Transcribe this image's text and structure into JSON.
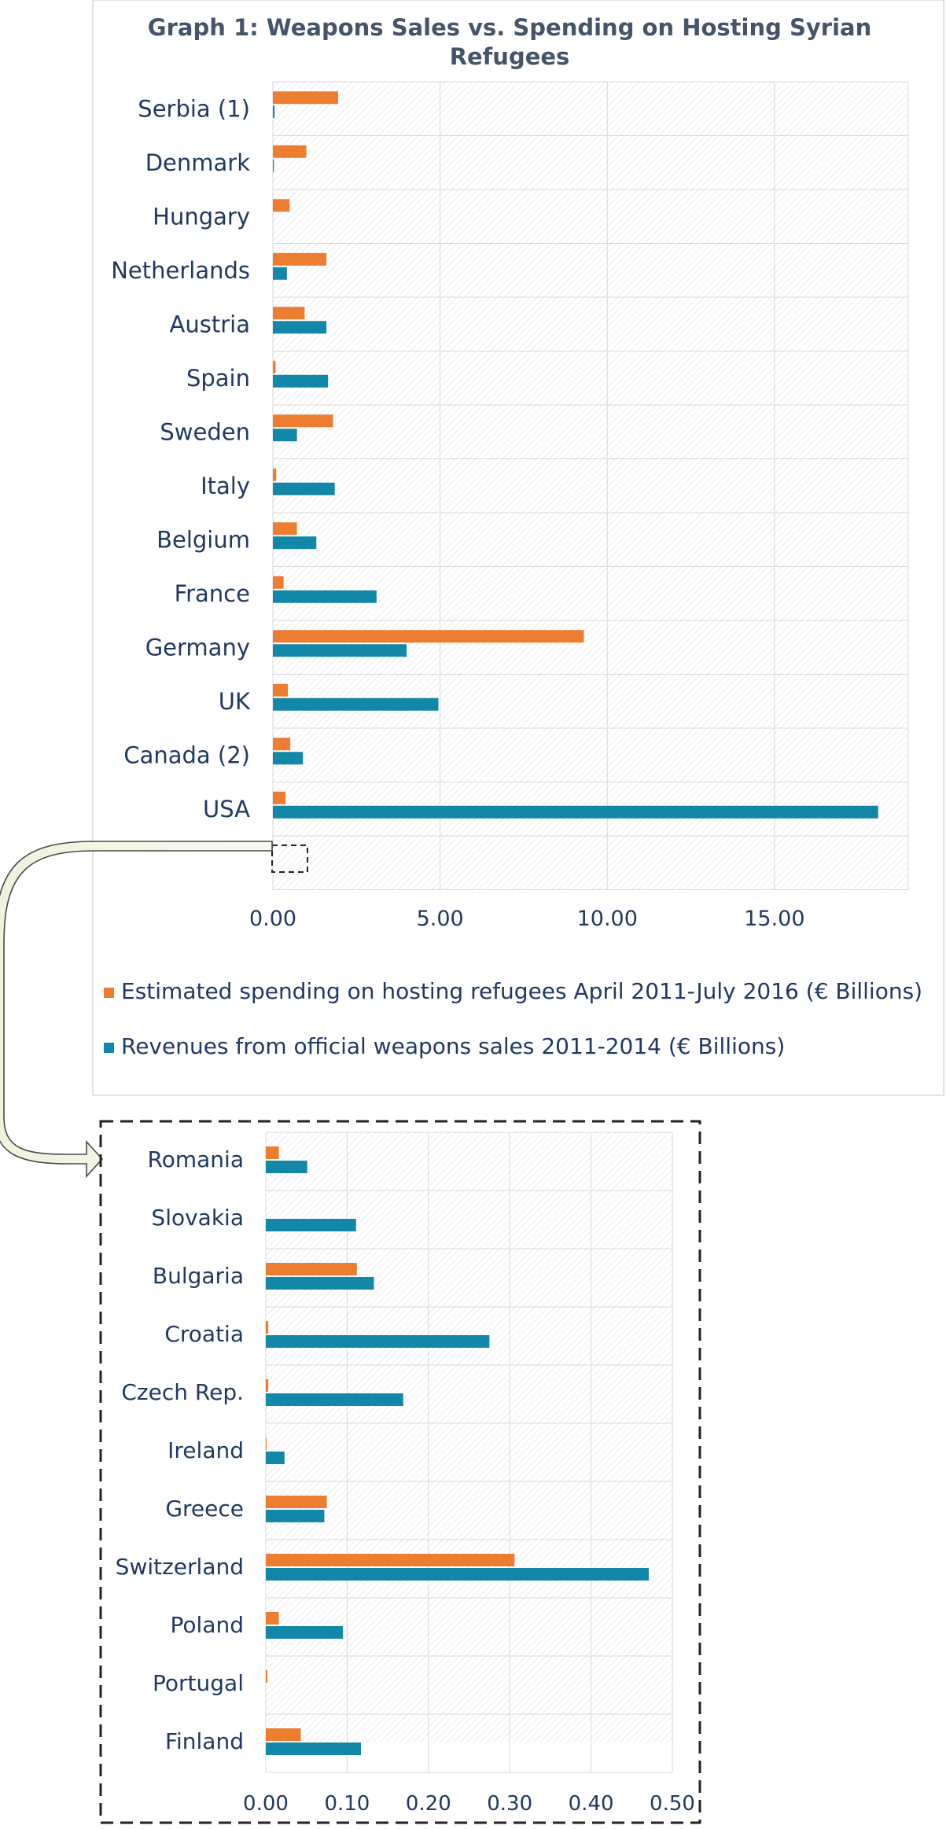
{
  "chart_data": [
    {
      "type": "bar",
      "orientation": "horizontal",
      "title": "Graph 1: Weapons Sales vs. Spending on Hosting Syrian Refugees",
      "categories": [
        "Serbia (1)",
        "Denmark",
        "Hungary",
        "Netherlands",
        "Austria",
        "Spain",
        "Sweden",
        "Italy",
        "Belgium",
        "France",
        "Germany",
        "UK",
        "Canada (2)",
        "USA"
      ],
      "series": [
        {
          "name": "Estimated spending on hosting refugees April 2011-July 2016 (€ Billions)",
          "color": "#ED7D31",
          "values": [
            1.95,
            1.0,
            0.5,
            1.6,
            0.95,
            0.08,
            1.8,
            0.1,
            0.72,
            0.32,
            9.3,
            0.45,
            0.52,
            0.38
          ]
        },
        {
          "name": "Revenues from official weapons sales 2011-2014 (€ Billions)",
          "color": "#1287A8",
          "values": [
            0.05,
            0.03,
            0.0,
            0.42,
            1.6,
            1.65,
            0.72,
            1.85,
            1.3,
            3.1,
            4.0,
            4.95,
            0.9,
            18.1
          ]
        }
      ],
      "xlim": [
        0,
        19
      ],
      "xticks": [
        "0.00",
        "5.00",
        "10.00",
        "15.00"
      ],
      "xtick_values": [
        0,
        5,
        10,
        15
      ],
      "legend_position": "bottom",
      "grid": true
    },
    {
      "type": "bar",
      "orientation": "horizontal",
      "title": "",
      "categories": [
        "Romania",
        "Slovakia",
        "Bulgaria",
        "Croatia",
        "Czech Rep.",
        "Ireland",
        "Greece",
        "Switzerland",
        "Poland",
        "Portugal",
        "Finland"
      ],
      "series": [
        {
          "color": "#ED7D31",
          "values": [
            0.016,
            0.0,
            0.112,
            0.003,
            0.003,
            0.001,
            0.075,
            0.306,
            0.016,
            0.002,
            0.043
          ]
        },
        {
          "color": "#1287A8",
          "values": [
            0.051,
            0.111,
            0.133,
            0.275,
            0.169,
            0.023,
            0.072,
            0.471,
            0.095,
            0.0,
            0.117
          ]
        }
      ],
      "xlim": [
        0,
        0.5
      ],
      "xticks": [
        "0.00",
        "0.10",
        "0.20",
        "0.30",
        "0.40",
        "0.50"
      ],
      "xtick_values": [
        0,
        0.1,
        0.2,
        0.3,
        0.4,
        0.5
      ],
      "grid": true
    }
  ]
}
